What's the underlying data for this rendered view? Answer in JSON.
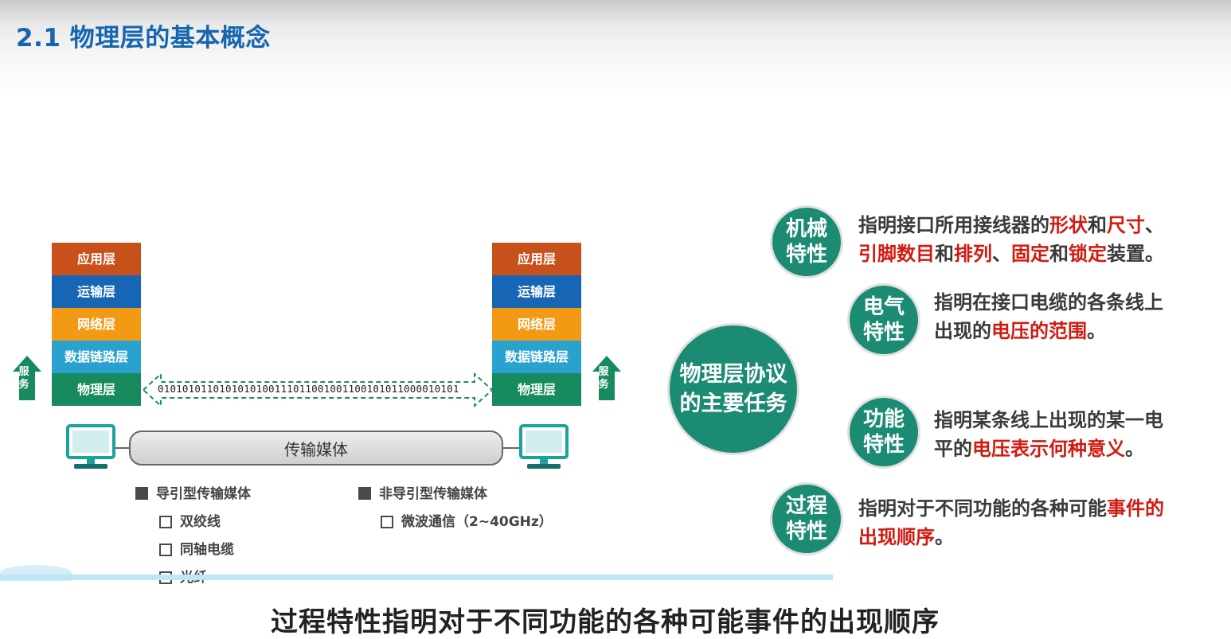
{
  "page": {
    "title": "2.1 物理层的基本概念"
  },
  "stack_left": {
    "layers": [
      {
        "label": "应用层",
        "color": "#c8511b"
      },
      {
        "label": "运输层",
        "color": "#1766b5"
      },
      {
        "label": "网络层",
        "color": "#f39a14"
      },
      {
        "label": "数据链路层",
        "color": "#29a2cf"
      },
      {
        "label": "物理层",
        "color": "#178a5e"
      }
    ],
    "service_label": [
      "服",
      "务"
    ]
  },
  "stack_right": {
    "layers": [
      {
        "label": "应用层",
        "color": "#c8511b"
      },
      {
        "label": "运输层",
        "color": "#1766b5"
      },
      {
        "label": "网络层",
        "color": "#f39a14"
      },
      {
        "label": "数据链路层",
        "color": "#29a2cf"
      },
      {
        "label": "物理层",
        "color": "#178a5e"
      }
    ],
    "service_label": [
      "服",
      "务"
    ]
  },
  "bitstream": "0101010110101010100111011001001100101011000010101",
  "medium": {
    "label": "传输媒体"
  },
  "media_types": {
    "guided": {
      "title": "导引型传输媒体",
      "items": [
        "双绞线",
        "同轴电缆",
        "光纤"
      ]
    },
    "unguided": {
      "title": "非导引型传输媒体",
      "items": [
        "微波通信（2~40GHz）"
      ]
    }
  },
  "center": {
    "line1": "物理层协议",
    "line2": "的主要任务"
  },
  "characteristics": {
    "mechanical": {
      "badge_line1": "机械",
      "badge_line2": "特性",
      "d1": "指明接口所用接线器的",
      "d2": "形状",
      "d3": "和",
      "d4": "尺寸",
      "d5": "、",
      "d6": "引脚数目",
      "d7": "和",
      "d8": "排列",
      "d9": "、",
      "d10": "固定",
      "d11": "和",
      "d12": "锁定",
      "d13": "装置。"
    },
    "electrical": {
      "badge_line1": "电气",
      "badge_line2": "特性",
      "d1": "指明在接口电缆的各条线上",
      "d2": "出现的",
      "d3": "电压的范围",
      "d4": "。"
    },
    "functional": {
      "badge_line1": "功能",
      "badge_line2": "特性",
      "d1": "指明某条线上出现的某一电",
      "d2": "平的",
      "d3": "电压表示何种意义",
      "d4": "。"
    },
    "procedural": {
      "badge_line1": "过程",
      "badge_line2": "特性",
      "d1": "指明对于不同功能的各种可能",
      "d2": "事件的",
      "d3": "出现顺序",
      "d4": "。"
    }
  },
  "subtitle": "过程特性指明对于不同功能的各种可能事件的出现顺序",
  "colors": {
    "title_blue": "#1565b0",
    "teal": "#1c8b73",
    "red": "#d11a10",
    "monitor": "#1aa39a"
  },
  "icons": [
    "computer-icon",
    "up-arrow-icon",
    "double-arrow-icon"
  ]
}
